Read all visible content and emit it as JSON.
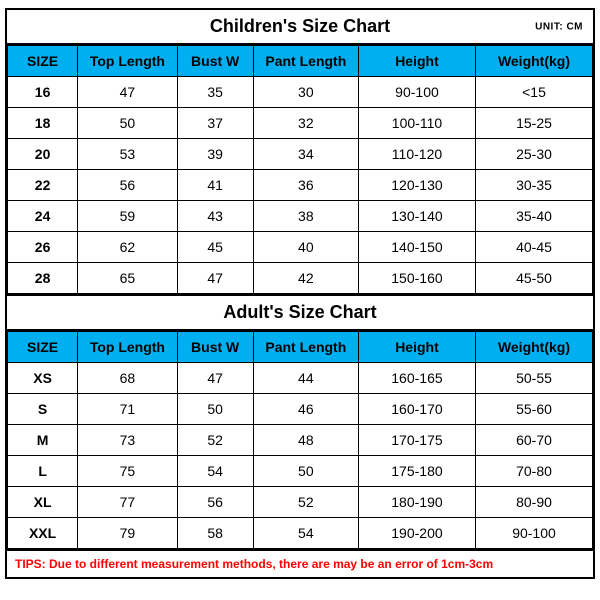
{
  "style": {
    "header_bg_color": "#00aff0",
    "border_color": "#000000",
    "tips_color": "#ff0000",
    "title_fontsize": 18,
    "header_fontsize": 14,
    "cell_fontsize": 14,
    "tips_fontsize": 12,
    "background_color": "#ffffff"
  },
  "unit_label": "UNIT: CM",
  "columns": [
    "SIZE",
    "Top Length",
    "Bust W",
    "Pant Length",
    "Height",
    "Weight(kg)"
  ],
  "children": {
    "title": "Children's Size Chart",
    "rows": [
      [
        "16",
        "47",
        "35",
        "30",
        "90-100",
        "<15"
      ],
      [
        "18",
        "50",
        "37",
        "32",
        "100-110",
        "15-25"
      ],
      [
        "20",
        "53",
        "39",
        "34",
        "110-120",
        "25-30"
      ],
      [
        "22",
        "56",
        "41",
        "36",
        "120-130",
        "30-35"
      ],
      [
        "24",
        "59",
        "43",
        "38",
        "130-140",
        "35-40"
      ],
      [
        "26",
        "62",
        "45",
        "40",
        "140-150",
        "40-45"
      ],
      [
        "28",
        "65",
        "47",
        "42",
        "150-160",
        "45-50"
      ]
    ]
  },
  "adult": {
    "title": "Adult's Size Chart",
    "rows": [
      [
        "XS",
        "68",
        "47",
        "44",
        "160-165",
        "50-55"
      ],
      [
        "S",
        "71",
        "50",
        "46",
        "160-170",
        "55-60"
      ],
      [
        "M",
        "73",
        "52",
        "48",
        "170-175",
        "60-70"
      ],
      [
        "L",
        "75",
        "54",
        "50",
        "175-180",
        "70-80"
      ],
      [
        "XL",
        "77",
        "56",
        "52",
        "180-190",
        "80-90"
      ],
      [
        "XXL",
        "79",
        "58",
        "54",
        "190-200",
        "90-100"
      ]
    ]
  },
  "tips": "TIPS: Due to different measurement methods, there are may be an error of 1cm-3cm"
}
